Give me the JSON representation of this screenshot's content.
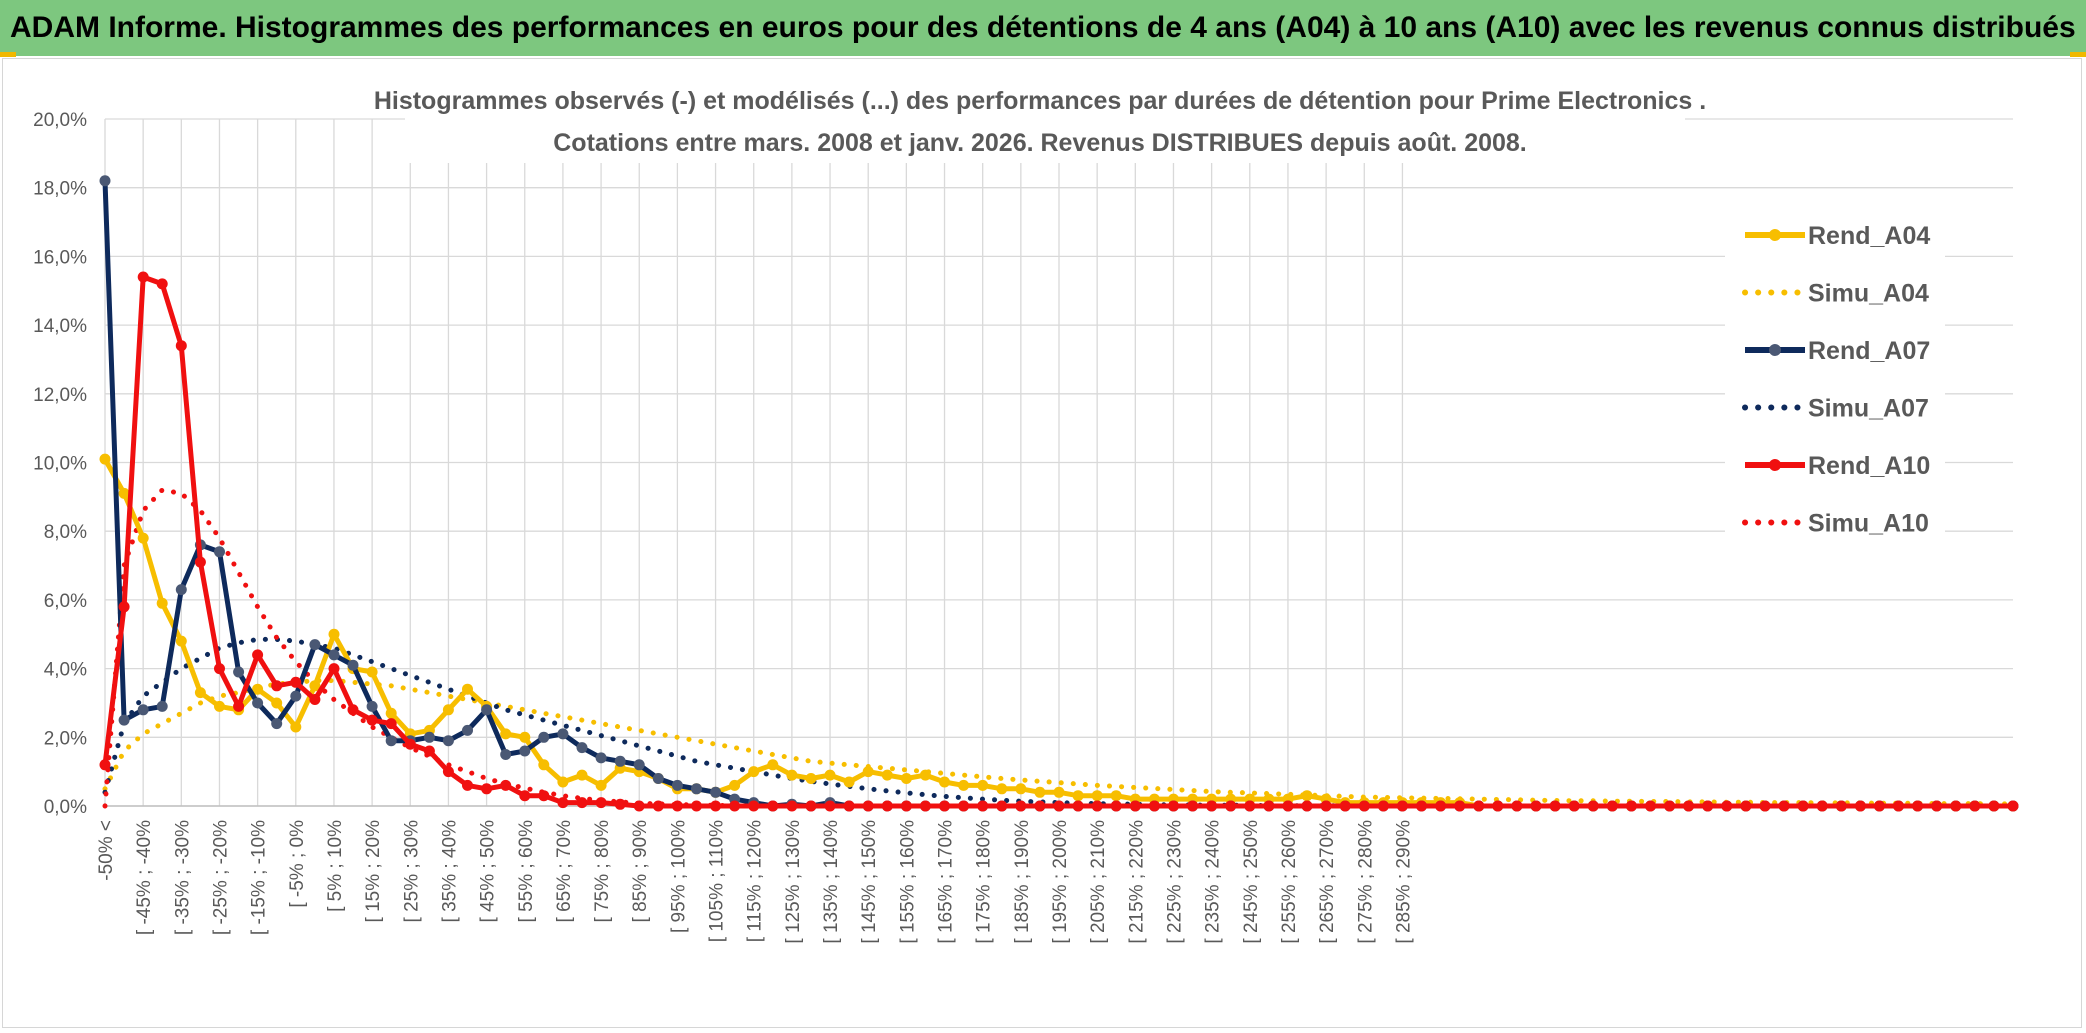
{
  "header": {
    "title": "ADAM Informe. Histogrammes des performances en euros pour des détentions de 4 ans (A04) à 10 ans (A10) avec les revenus connus distribués"
  },
  "colors": {
    "banner_bg": "#7dc77f",
    "A04": "#f7be00",
    "A07": "#0e2a5c",
    "A10": "#f01010"
  },
  "chart_data": {
    "type": "line",
    "title_line1": "Histogrammes observés (-) et modélisés (...) des performances par durées de détention pour Prime Electronics .",
    "title_line2": "Cotations entre mars. 2008 et janv. 2026. Revenus DISTRIBUES depuis août. 2008.",
    "xlabel": "",
    "ylabel": "",
    "ylim": [
      0,
      20
    ],
    "y_tick_labels": [
      "0,0%",
      "2,0%",
      "4,0%",
      "6,0%",
      "8,0%",
      "10,0%",
      "12,0%",
      "14,0%",
      "16,0%",
      "18,0%",
      "20,0%"
    ],
    "x_tick_labels": [
      "-50% <",
      "[ -45% ; -40%",
      "[ -35% ; -30%",
      "[ -25% ; -20%",
      "[ -15% ; -10%",
      "[ -5% ; 0%",
      "[ 5% ; 10%",
      "[ 15% ; 20%",
      "[ 25% ; 30%",
      "[ 35% ; 40%",
      "[ 45% ; 50%",
      "[ 55% ; 60%",
      "[ 65% ; 70%",
      "[ 75% ; 80%",
      "[ 85% ; 90%",
      "[ 95% ; 100%",
      "[ 105% ; 110%",
      "[ 115% ; 120%",
      "[ 125% ; 130%",
      "[ 135% ; 140%",
      "[ 145% ; 150%",
      "[ 155% ; 160%",
      "[ 165% ; 170%",
      "[ 175% ; 180%",
      "[ 185% ; 190%",
      "[ 195% ; 200%",
      "[ 205% ; 210%",
      "[ 215% ; 220%",
      "[ 225% ; 230%",
      "[ 235% ; 240%",
      "[ 245% ; 250%",
      "[ 255% ; 260%",
      "[ 265% ; 270%",
      "[ 275% ; 280%",
      "[ 285% ; 290%"
    ],
    "grid": true,
    "legend_position": "right",
    "series": [
      {
        "name": "Rend_A04",
        "style": "solid",
        "color_key": "A04",
        "values": [
          10.1,
          9.1,
          7.8,
          5.9,
          4.8,
          3.3,
          2.9,
          2.8,
          3.4,
          3.0,
          2.3,
          3.5,
          5.0,
          4.0,
          3.9,
          2.7,
          2.1,
          2.2,
          2.8,
          3.4,
          2.9,
          2.1,
          2.0,
          1.2,
          0.7,
          0.9,
          0.6,
          1.1,
          1.0,
          0.8,
          0.5,
          0.5,
          0.4,
          0.6,
          1.0,
          1.2,
          0.9,
          0.8,
          0.9,
          0.7,
          1.0,
          0.9,
          0.8,
          0.9,
          0.7,
          0.6,
          0.6,
          0.5,
          0.5,
          0.4,
          0.4,
          0.3,
          0.3,
          0.3,
          0.2,
          0.2,
          0.2,
          0.2,
          0.2,
          0.2,
          0.2,
          0.2,
          0.2,
          0.3,
          0.2,
          0.1,
          0.1,
          0.1,
          0.1,
          0.1,
          0.1,
          0.1,
          0.0,
          0.0,
          0.0,
          0.0,
          0.0,
          0.0,
          0.0,
          0.0,
          0.0,
          0.0,
          0.0,
          0.0,
          0.0,
          0.0,
          0.0,
          0.0,
          0.0,
          0.0,
          0.0,
          0.0,
          0.0,
          0.0,
          0.0,
          0.0,
          0.0,
          0.0,
          0.0,
          0.0,
          0.0
        ]
      },
      {
        "name": "Simu_A04",
        "style": "dotted",
        "color_key": "A04",
        "values": [
          0.5,
          1.6,
          2.1,
          2.4,
          2.7,
          3.0,
          3.2,
          3.3,
          3.45,
          3.55,
          3.6,
          3.65,
          3.65,
          3.6,
          3.55,
          3.5,
          3.4,
          3.3,
          3.2,
          3.1,
          3.0,
          2.9,
          2.8,
          2.7,
          2.6,
          2.5,
          2.4,
          2.3,
          2.2,
          2.1,
          2.0,
          1.9,
          1.8,
          1.7,
          1.6,
          1.5,
          1.4,
          1.3,
          1.25,
          1.2,
          1.15,
          1.1,
          1.05,
          1.0,
          0.95,
          0.9,
          0.85,
          0.8,
          0.76,
          0.72,
          0.68,
          0.64,
          0.6,
          0.57,
          0.54,
          0.51,
          0.48,
          0.45,
          0.42,
          0.4,
          0.38,
          0.36,
          0.34,
          0.32,
          0.3,
          0.28,
          0.26,
          0.25,
          0.24,
          0.23,
          0.22,
          0.21,
          0.2,
          0.19,
          0.18,
          0.17,
          0.16,
          0.15,
          0.15,
          0.14,
          0.14,
          0.13,
          0.13,
          0.12,
          0.12,
          0.11,
          0.11,
          0.1,
          0.1,
          0.1,
          0.09,
          0.09,
          0.09,
          0.08,
          0.08,
          0.08,
          0.07,
          0.07,
          0.07,
          0.06,
          0.06
        ]
      },
      {
        "name": "Rend_A07",
        "style": "solid",
        "color_key": "A07",
        "values": [
          18.2,
          2.5,
          2.8,
          2.9,
          6.3,
          7.6,
          7.4,
          3.9,
          3.0,
          2.4,
          3.2,
          4.7,
          4.4,
          4.1,
          2.9,
          1.9,
          1.9,
          2.0,
          1.9,
          2.2,
          2.8,
          1.5,
          1.6,
          2.0,
          2.1,
          1.7,
          1.4,
          1.3,
          1.2,
          0.8,
          0.6,
          0.5,
          0.4,
          0.2,
          0.1,
          0.0,
          0.05,
          0.0,
          0.1,
          0.0,
          0.0,
          0.0,
          0.0,
          0.0,
          0.0,
          0.0,
          0.0,
          0.0,
          0.0,
          0.0,
          0.0,
          0.0,
          0.0,
          0.0,
          0.0,
          0.0,
          0.0,
          0.0,
          0.0,
          0.0,
          0.0,
          0.0,
          0.0,
          0.0,
          0.0,
          0.0,
          0.0,
          0.0,
          0.0,
          0.0,
          0.0,
          0.0,
          0.0,
          0.0,
          0.0,
          0.0,
          0.0,
          0.0,
          0.0,
          0.0,
          0.0,
          0.0,
          0.0,
          0.0,
          0.0,
          0.0,
          0.0,
          0.0,
          0.0,
          0.0,
          0.0,
          0.0,
          0.0,
          0.0,
          0.0,
          0.0,
          0.0,
          0.0,
          0.0,
          0.0,
          0.0
        ]
      },
      {
        "name": "Simu_A07",
        "style": "dotted",
        "color_key": "A07",
        "values": [
          0.4,
          2.4,
          3.2,
          3.6,
          4.0,
          4.3,
          4.6,
          4.75,
          4.85,
          4.85,
          4.8,
          4.7,
          4.6,
          4.4,
          4.2,
          4.0,
          3.8,
          3.6,
          3.4,
          3.2,
          3.0,
          2.8,
          2.65,
          2.5,
          2.35,
          2.2,
          2.05,
          1.9,
          1.75,
          1.6,
          1.45,
          1.3,
          1.2,
          1.1,
          1.0,
          0.9,
          0.8,
          0.72,
          0.64,
          0.57,
          0.5,
          0.44,
          0.38,
          0.33,
          0.28,
          0.24,
          0.2,
          0.17,
          0.14,
          0.12,
          0.1,
          0.08,
          0.07,
          0.06,
          0.05,
          0.04,
          0.03,
          0.03,
          0.02,
          0.02,
          0.02,
          0.01,
          0.01,
          0.01,
          0.01,
          0.01,
          0.0,
          0.0,
          0.0,
          0.0,
          0.0,
          0.0,
          0.0,
          0.0,
          0.0,
          0.0,
          0.0,
          0.0,
          0.0,
          0.0,
          0.0,
          0.0,
          0.0,
          0.0,
          0.0,
          0.0,
          0.0,
          0.0,
          0.0,
          0.0,
          0.0,
          0.0,
          0.0,
          0.0,
          0.0,
          0.0,
          0.0,
          0.0,
          0.0,
          0.0,
          0.0
        ]
      },
      {
        "name": "Rend_A10",
        "style": "solid",
        "color_key": "A10",
        "values": [
          1.2,
          5.8,
          15.4,
          15.2,
          13.4,
          7.1,
          4.0,
          2.9,
          4.4,
          3.5,
          3.6,
          3.1,
          4.0,
          2.8,
          2.5,
          2.4,
          1.8,
          1.6,
          1.0,
          0.6,
          0.5,
          0.6,
          0.3,
          0.3,
          0.1,
          0.1,
          0.1,
          0.05,
          0.0,
          0.0,
          0.0,
          0.0,
          0.0,
          0.0,
          0.0,
          0.0,
          0.0,
          0.0,
          0.0,
          0.0,
          0.0,
          0.0,
          0.0,
          0.0,
          0.0,
          0.0,
          0.0,
          0.0,
          0.0,
          0.0,
          0.0,
          0.0,
          0.0,
          0.0,
          0.0,
          0.0,
          0.0,
          0.0,
          0.0,
          0.0,
          0.0,
          0.0,
          0.0,
          0.0,
          0.0,
          0.0,
          0.0,
          0.0,
          0.0,
          0.0,
          0.0,
          0.0,
          0.0,
          0.0,
          0.0,
          0.0,
          0.0,
          0.0,
          0.0,
          0.0,
          0.0,
          0.0,
          0.0,
          0.0,
          0.0,
          0.0,
          0.0,
          0.0,
          0.0,
          0.0,
          0.0,
          0.0,
          0.0,
          0.0,
          0.0,
          0.0,
          0.0,
          0.0,
          0.0,
          0.0,
          0.0
        ]
      },
      {
        "name": "Simu_A10",
        "style": "dotted",
        "color_key": "A10",
        "values": [
          0.0,
          7.0,
          8.6,
          9.2,
          9.1,
          8.6,
          7.8,
          6.8,
          5.8,
          4.9,
          4.2,
          3.6,
          3.1,
          2.7,
          2.3,
          2.0,
          1.7,
          1.45,
          1.2,
          1.0,
          0.8,
          0.65,
          0.52,
          0.4,
          0.3,
          0.22,
          0.16,
          0.12,
          0.08,
          0.06,
          0.04,
          0.03,
          0.02,
          0.01,
          0.01,
          0.0,
          0.0,
          0.0,
          0.0,
          0.0,
          0.0,
          0.0,
          0.0,
          0.0,
          0.0,
          0.0,
          0.0,
          0.0,
          0.0,
          0.0,
          0.0,
          0.0,
          0.0,
          0.0,
          0.0,
          0.0,
          0.0,
          0.0,
          0.0,
          0.0,
          0.0,
          0.0,
          0.0,
          0.0,
          0.0,
          0.0,
          0.0,
          0.0,
          0.0,
          0.0,
          0.0,
          0.0,
          0.0,
          0.0,
          0.0,
          0.0,
          0.0,
          0.0,
          0.0,
          0.0,
          0.0,
          0.0,
          0.0,
          0.0,
          0.0,
          0.0,
          0.0,
          0.0,
          0.0,
          0.0,
          0.0,
          0.0,
          0.0,
          0.0,
          0.0,
          0.0,
          0.0,
          0.0,
          0.0,
          0.0,
          0.0
        ]
      }
    ]
  }
}
